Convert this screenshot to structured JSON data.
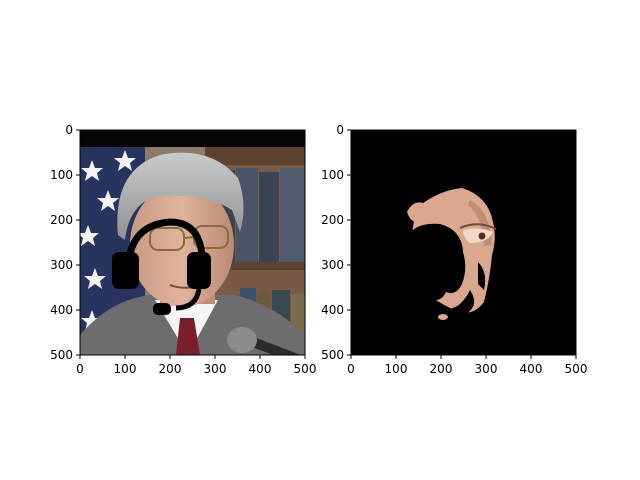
{
  "figure": {
    "background": "#ffffff"
  },
  "chart_data": [
    {
      "type": "image",
      "panel": "left",
      "content": "photo of a man in glasses, suit and red tie speaking at a microphone in front of a US flag and bookshelves, with a black headset overlay drawn over the face",
      "xlim": [
        0,
        500
      ],
      "ylim": [
        500,
        0
      ],
      "xticks": [
        0,
        100,
        200,
        300,
        400,
        500
      ],
      "yticks": [
        0,
        100,
        200,
        300,
        400,
        500
      ],
      "title": "",
      "xlabel": "",
      "ylabel": ""
    },
    {
      "type": "image",
      "panel": "right",
      "content": "masked face region on black background (skin pixels only, with black headset occlusion)",
      "xlim": [
        0,
        500
      ],
      "ylim": [
        500,
        0
      ],
      "xticks": [
        0,
        100,
        200,
        300,
        400,
        500
      ],
      "yticks": [
        0,
        100,
        200,
        300,
        400,
        500
      ],
      "title": "",
      "xlabel": "",
      "ylabel": ""
    }
  ]
}
